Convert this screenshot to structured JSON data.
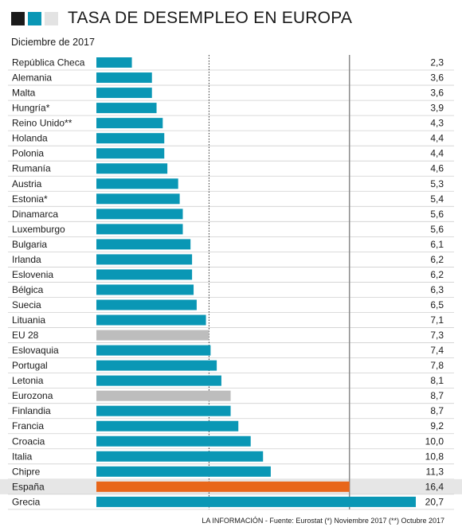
{
  "header": {
    "squares": [
      {
        "name": "dark-square-icon",
        "color": "#1a1a1a"
      },
      {
        "name": "teal-square-icon",
        "color": "#0a97b5"
      },
      {
        "name": "light-square-icon",
        "color": "#e3e3e3"
      }
    ],
    "title": "TASA DE DESEMPLEO EN EUROPA",
    "subtitle": "Diciembre de 2017"
  },
  "source": "LA INFORMACIÓN - Fuente: Eurostat  (*) Noviembre 2017 (**) Octubre 2017",
  "colors": {
    "country": "#0a97b5",
    "aggregate": "#bdbdbd",
    "highlight": "#e8661a",
    "highlight_row": "#e6e6e6",
    "divider": "#cfcfcf"
  },
  "chart_data": {
    "type": "bar",
    "orientation": "horizontal",
    "title": "TASA DE DESEMPLEO EN EUROPA",
    "subtitle": "Diciembre de 2017",
    "xlim": [
      0,
      20.7
    ],
    "reference_lines": [
      {
        "value": 7.3,
        "style": "dotted"
      },
      {
        "value": 16.4,
        "style": "solid"
      }
    ],
    "categories": [
      "República Checa",
      "Alemania",
      "Malta",
      "Hungría*",
      "Reino Unido**",
      "Holanda",
      "Polonia",
      "Rumanía",
      "Austria",
      "Estonia*",
      "Dinamarca",
      "Luxemburgo",
      "Bulgaria",
      "Irlanda",
      "Eslovenia",
      "Bélgica",
      "Suecia",
      "Lituania",
      "EU 28",
      "Eslovaquia",
      "Portugal",
      "Letonia",
      "Eurozona",
      "Finlandia",
      "Francia",
      "Croacia",
      "Italia",
      "Chipre",
      "España",
      "Grecia"
    ],
    "values": [
      2.3,
      3.6,
      3.6,
      3.9,
      4.3,
      4.4,
      4.4,
      4.6,
      5.3,
      5.4,
      5.6,
      5.6,
      6.1,
      6.2,
      6.2,
      6.3,
      6.5,
      7.1,
      7.3,
      7.4,
      7.8,
      8.1,
      8.7,
      8.7,
      9.2,
      10.0,
      10.8,
      11.3,
      16.4,
      20.7
    ],
    "value_labels": [
      "2,3",
      "3,6",
      "3,6",
      "3,9",
      "4,3",
      "4,4",
      "4,4",
      "4,6",
      "5,3",
      "5,4",
      "5,6",
      "5,6",
      "6,1",
      "6,2",
      "6,2",
      "6,3",
      "6,5",
      "7,1",
      "7,3",
      "7,4",
      "7,8",
      "8,1",
      "8,7",
      "8,7",
      "9,2",
      "10,0",
      "10,8",
      "11,3",
      "16,4",
      "20,7"
    ],
    "kinds": [
      "country",
      "country",
      "country",
      "country",
      "country",
      "country",
      "country",
      "country",
      "country",
      "country",
      "country",
      "country",
      "country",
      "country",
      "country",
      "country",
      "country",
      "country",
      "aggregate",
      "country",
      "country",
      "country",
      "aggregate",
      "country",
      "country",
      "country",
      "country",
      "country",
      "highlight",
      "country"
    ]
  }
}
